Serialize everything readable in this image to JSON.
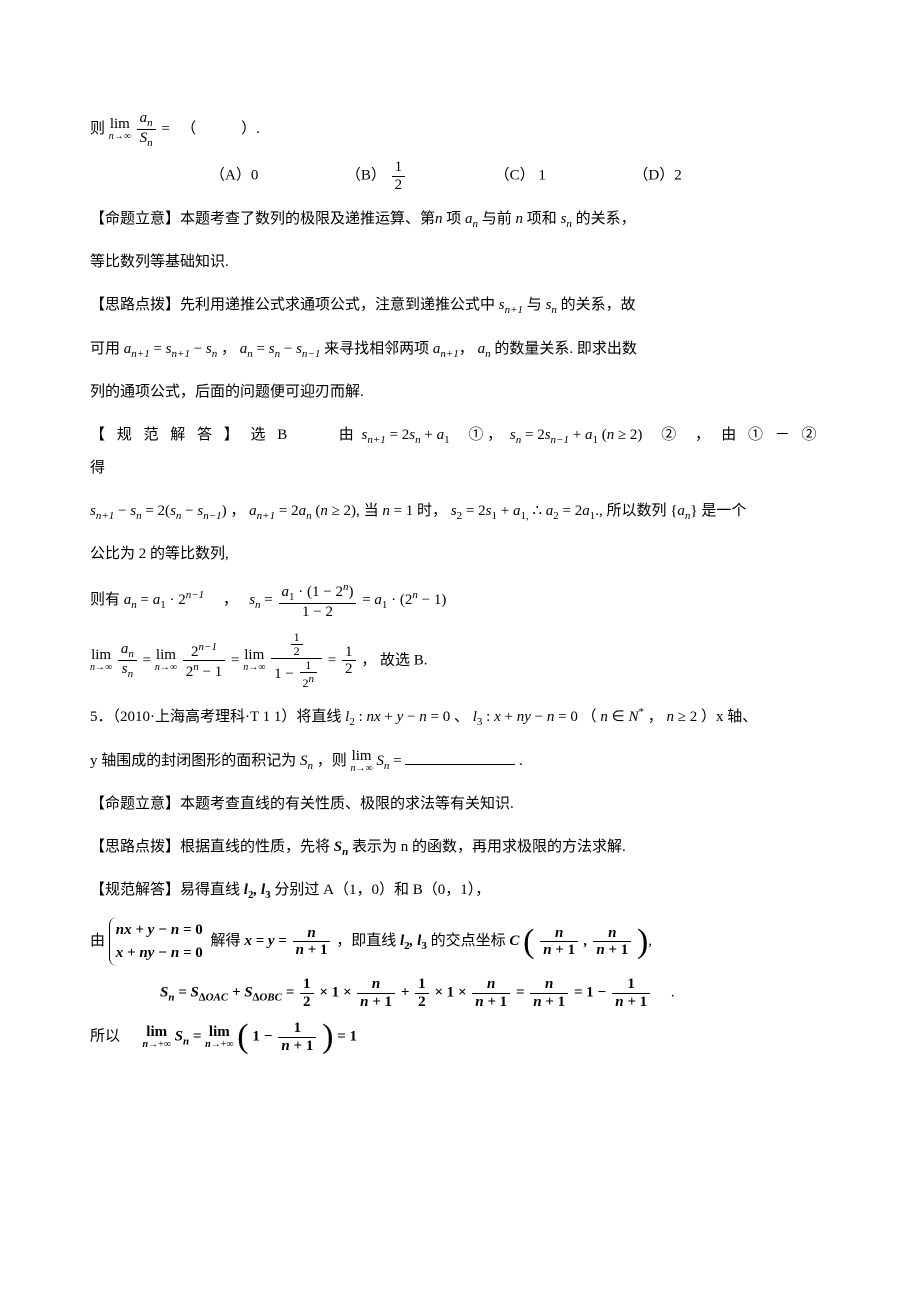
{
  "q4": {
    "prelude": "则",
    "limit_expr": "lim (n→∞) aₙ/Sₙ = （     ）.",
    "options": {
      "a_label": "（A）0",
      "b_label": "（B）",
      "b_value_num": "1",
      "b_value_den": "2",
      "c_label": "（C） 1",
      "d_label": "（D）2"
    },
    "mingti": "【命题立意】本题考查了数列的极限及递推运算、第",
    "mingti_mid1": "项",
    "mingti_mid2": "与前",
    "mingti_mid3": "项和",
    "mingti_tail": "的关系，",
    "mingti2": "等比数列等基础知识.",
    "silu_head": "【思路点拨】先利用递推公式求通项公式，注意到递推公式中",
    "silu_mid": "与",
    "silu_tail": "的关系，故",
    "silu2_head": "可用",
    "silu2_mid": "来寻找相邻两项",
    "silu2_tail": "的数量关系. 即求出数",
    "silu3": "列的通项公式，后面的问题便可迎刃而解.",
    "guifan_head": "【 规 范 解 答 】 选 B",
    "guifan_mid1": "由",
    "guifan_eq1_post": "①",
    "guifan_eq2_post": "②",
    "guifan_mid2": "，",
    "guifan_mid3": "由 ① － ② 得",
    "guifan2_tail1": "当",
    "guifan2_tail2": "时，",
    "guifan2_tail3": "所以数列",
    "guifan2_tail4": "是一个",
    "guifan3": "公比为 2 的等比数列,",
    "zeyou_head": "则有",
    "final_tail": "故选 B."
  },
  "q5": {
    "number": "5．（2010·上海高考理科·T 1 1）将直线",
    "mid1": "、",
    "mid2": "（",
    "mid3": "，",
    "mid4": "）x 轴、",
    "line2_head": "y 轴围成的封闭图形的面积记为",
    "line2_mid": "，则",
    "mingti": "【命题立意】本题考查直线的有关性质、极限的求法等有关知识.",
    "silu_head": "【思路点拨】根据直线的性质，先将",
    "silu_tail": "表示为 n 的函数，再用求极限的方法求解.",
    "guifan_head": "【规范解答】易得直线",
    "guifan_tail": "分别过 A（1，0）和 B（0，1），",
    "you": "由",
    "jiede": "解得",
    "ji": "，即直线",
    "jiaodian": "的交点坐标",
    "suoyi": "所以"
  }
}
